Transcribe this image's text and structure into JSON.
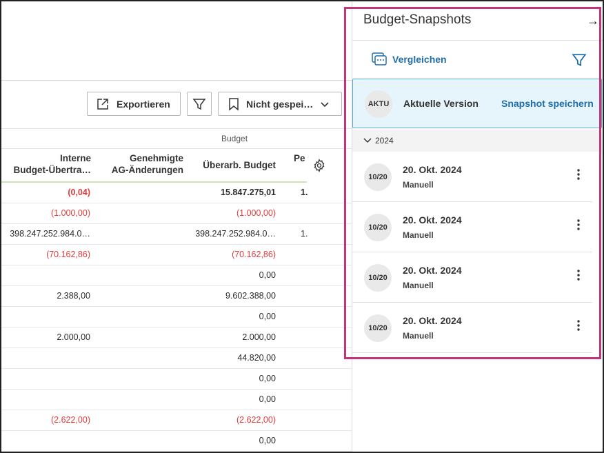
{
  "toolbar": {
    "export_label": "Exportieren",
    "view_label": "Nicht gespei…"
  },
  "table": {
    "group_header": "Budget",
    "columns": [
      "Interne Budget-Übertra…",
      "Genehmigte AG-Änderungen",
      "Überarb. Budget",
      "Pe"
    ],
    "column_lines": [
      [
        "Interne",
        "Budget-Übertra…"
      ],
      [
        "Genehmigte",
        "AG-Änderungen"
      ],
      [
        "Überarb. Budget"
      ],
      [
        "Pe"
      ]
    ],
    "rows": [
      {
        "c1": "(0,04)",
        "c3": "15.847.275,01",
        "c4": "1.",
        "neg1": true,
        "neg3": false,
        "bold": true
      },
      {
        "c1": "(1.000,00)",
        "c3": "(1.000,00)",
        "c4": "",
        "neg1": true,
        "neg3": true,
        "bold": false
      },
      {
        "c1": "398.247.252.984.0…",
        "c3": "398.247.252.984.0…",
        "c4": "1.",
        "neg1": false,
        "neg3": false,
        "bold": false
      },
      {
        "c1": "(70.162,86)",
        "c3": "(70.162,86)",
        "c4": "",
        "neg1": true,
        "neg3": true,
        "bold": false
      },
      {
        "c1": "",
        "c3": "0,00",
        "c4": "",
        "neg1": false,
        "neg3": false,
        "bold": false
      },
      {
        "c1": "2.388,00",
        "c3": "9.602.388,00",
        "c4": "",
        "neg1": false,
        "neg3": false,
        "bold": false
      },
      {
        "c1": "",
        "c3": "0,00",
        "c4": "",
        "neg1": false,
        "neg3": false,
        "bold": false
      },
      {
        "c1": "2.000,00",
        "c3": "2.000,00",
        "c4": "",
        "neg1": false,
        "neg3": false,
        "bold": false
      },
      {
        "c1": "",
        "c3": "44.820,00",
        "c4": "",
        "neg1": false,
        "neg3": false,
        "bold": false
      },
      {
        "c1": "",
        "c3": "0,00",
        "c4": "",
        "neg1": false,
        "neg3": false,
        "bold": false
      },
      {
        "c1": "",
        "c3": "0,00",
        "c4": "",
        "neg1": false,
        "neg3": false,
        "bold": false
      },
      {
        "c1": "(2.622,00)",
        "c3": "(2.622,00)",
        "c4": "",
        "neg1": true,
        "neg3": true,
        "bold": false
      },
      {
        "c1": "",
        "c3": "0,00",
        "c4": "",
        "neg1": false,
        "neg3": false,
        "bold": false
      }
    ]
  },
  "panel": {
    "title": "Budget-Snapshots",
    "compare_label": "Vergleichen",
    "current": {
      "badge": "AKTU",
      "label": "Aktuelle Version",
      "save_label": "Snapshot speichern"
    },
    "year_label": "2024",
    "snapshots": [
      {
        "badge": "10/20",
        "date": "20. Okt. 2024",
        "type": "Manuell"
      },
      {
        "badge": "10/20",
        "date": "20. Okt. 2024",
        "type": "Manuell"
      },
      {
        "badge": "10/20",
        "date": "20. Okt. 2024",
        "type": "Manuell"
      },
      {
        "badge": "10/20",
        "date": "20. Okt. 2024",
        "type": "Manuell"
      }
    ]
  },
  "colors": {
    "accent": "#1f6ea8",
    "negative": "#e23b3b",
    "highlight": "#c3327d",
    "current_bg": "#e6f4fb"
  }
}
